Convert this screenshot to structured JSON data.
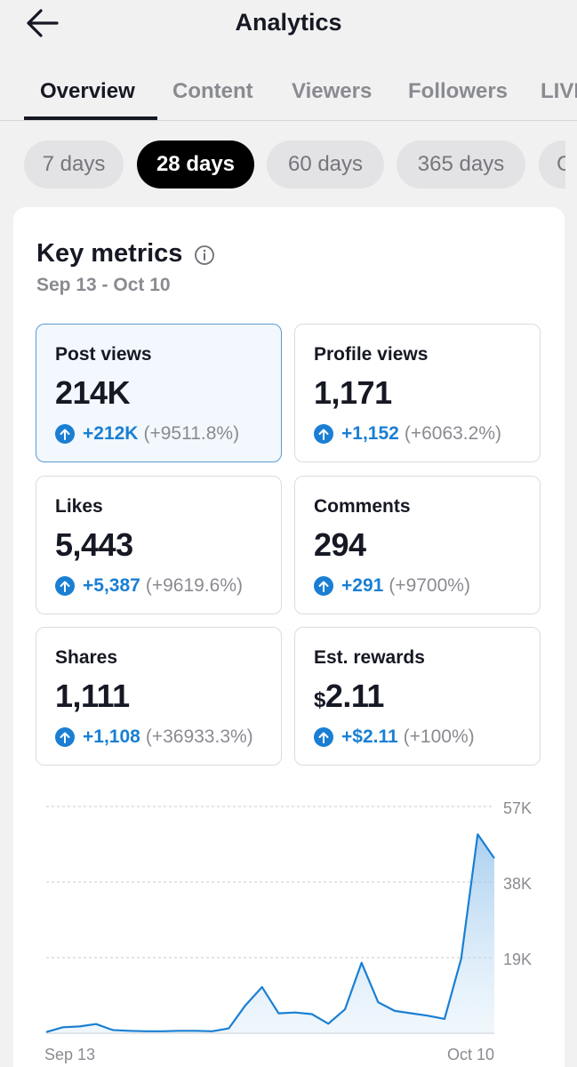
{
  "header": {
    "title": "Analytics",
    "back_icon": "arrow-left-icon"
  },
  "tabs": [
    {
      "label": "Overview",
      "active": true
    },
    {
      "label": "Content",
      "active": false
    },
    {
      "label": "Viewers",
      "active": false
    },
    {
      "label": "Followers",
      "active": false
    },
    {
      "label": "LIVE",
      "active": false
    }
  ],
  "ranges": [
    {
      "label": "7 days",
      "active": false
    },
    {
      "label": "28 days",
      "active": true
    },
    {
      "label": "60 days",
      "active": false
    },
    {
      "label": "365 days",
      "active": false
    },
    {
      "label": "Custom",
      "active": false
    }
  ],
  "key_metrics": {
    "title": "Key metrics",
    "date_range": "Sep 13 - Oct 10",
    "info_icon": "info-icon",
    "items": [
      {
        "label": "Post views",
        "value": "214K",
        "currency": "",
        "delta": "+212K",
        "pct": "(+9511.8%)",
        "selected": true
      },
      {
        "label": "Profile views",
        "value": "1,171",
        "currency": "",
        "delta": "+1,152",
        "pct": "(+6063.2%)",
        "selected": false
      },
      {
        "label": "Likes",
        "value": "5,443",
        "currency": "",
        "delta": "+5,387",
        "pct": "(+9619.6%)",
        "selected": false
      },
      {
        "label": "Comments",
        "value": "294",
        "currency": "",
        "delta": "+291",
        "pct": "(+9700%)",
        "selected": false
      },
      {
        "label": "Shares",
        "value": "1,111",
        "currency": "",
        "delta": "+1,108",
        "pct": "(+36933.3%)",
        "selected": false
      },
      {
        "label": "Est. rewards",
        "value": "2.11",
        "currency": "$",
        "delta": "+$2.11",
        "pct": "(+100%)",
        "selected": false
      }
    ]
  },
  "colors": {
    "accent": "#1a7fd3",
    "text": "#161823",
    "muted": "#8a8b91"
  },
  "chart_data": {
    "type": "area",
    "title": "",
    "xlabel": "",
    "ylabel": "",
    "x_tick_labels": [
      "Sep 13",
      "Oct 10"
    ],
    "y_tick_labels": [
      "19K",
      "38K",
      "57K"
    ],
    "y_ticks": [
      19000,
      38000,
      57000
    ],
    "ylim": [
      0,
      57000
    ],
    "grid": true,
    "x": [
      "Sep 13",
      "Sep 14",
      "Sep 15",
      "Sep 16",
      "Sep 17",
      "Sep 18",
      "Sep 19",
      "Sep 20",
      "Sep 21",
      "Sep 22",
      "Sep 23",
      "Sep 24",
      "Sep 25",
      "Sep 26",
      "Sep 27",
      "Sep 28",
      "Sep 29",
      "Sep 30",
      "Oct 1",
      "Oct 2",
      "Oct 3",
      "Oct 4",
      "Oct 5",
      "Oct 6",
      "Oct 7",
      "Oct 8",
      "Oct 9",
      "Oct 10"
    ],
    "series": [
      {
        "values": [
          300,
          1500,
          1700,
          2300,
          800,
          600,
          500,
          500,
          600,
          600,
          500,
          1200,
          7000,
          11600,
          5000,
          5200,
          4800,
          2400,
          6000,
          17700,
          7800,
          5600,
          5000,
          4400,
          3600,
          18700,
          50000,
          44000
        ]
      }
    ]
  }
}
